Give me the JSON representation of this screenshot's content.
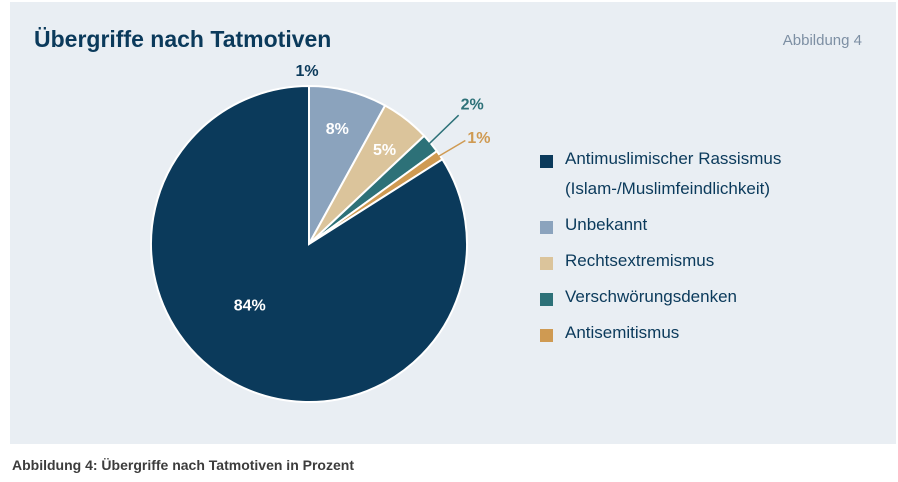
{
  "header": {
    "title": "Übergriffe nach Tatmotiven",
    "figure_tag": "Abbildung 4"
  },
  "caption": "Abbildung 4: Übergriffe nach Tatmotiven in Prozent",
  "chart_data": {
    "type": "pie",
    "unit": "%",
    "slices": [
      {
        "label": "Antimuslimischer Rassismus (Islam-/Muslimfeindlichkeit)",
        "value": 84,
        "display": "84%",
        "color": "#0b3a5b"
      },
      {
        "label": "Unbekannt",
        "value": 8,
        "display": "8%",
        "color": "#8ba3bd"
      },
      {
        "label": "Rechtsextremismus",
        "value": 5,
        "display": "5%",
        "color": "#dbc49b"
      },
      {
        "label": "Verschwörungsdenken",
        "value": 2,
        "display": "2%",
        "color": "#2d7178"
      },
      {
        "label": "Antisemitismus",
        "value": 1,
        "display": "1%",
        "color": "#cf9a52"
      }
    ],
    "extra_label": "1%"
  }
}
